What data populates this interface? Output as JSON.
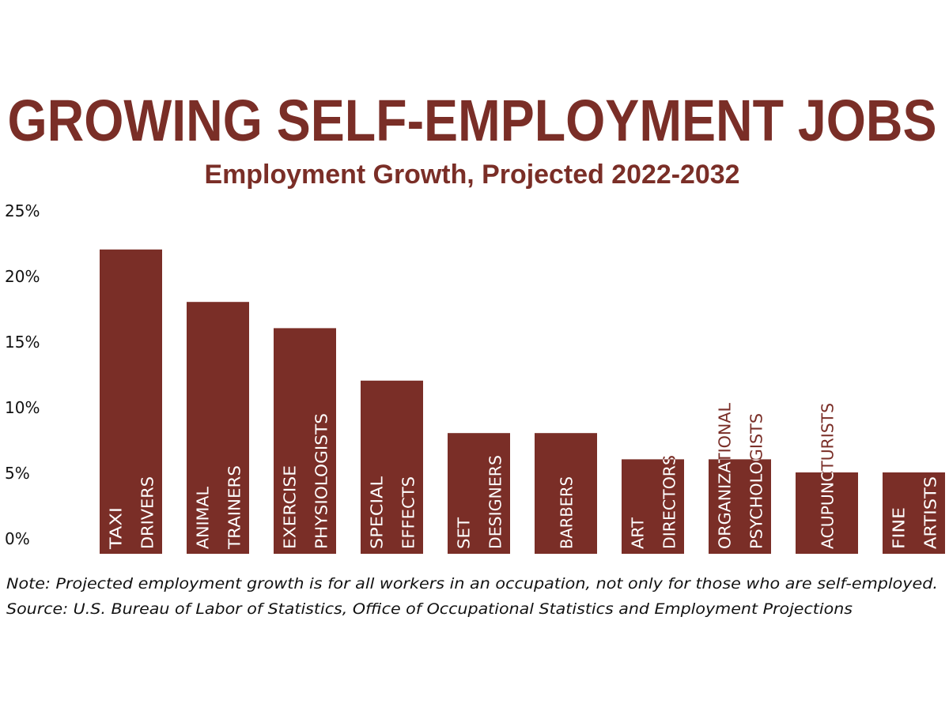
{
  "title": "GROWING SELF-EMPLOYMENT JOBS",
  "subtitle": "Employment Growth, Projected 2022-2032",
  "note": "Note: Projected employment growth is for all workers in an occupation, not only for those who are self-employed.",
  "source": "Source: U.S. Bureau of Labor of Statistics, Office of Occupational Statistics and Employment Projections",
  "colors": {
    "accent": "#7a2e27",
    "label_inside": "#ffffff",
    "background": "#ffffff"
  },
  "chart_data": {
    "type": "bar",
    "title": "GROWING SELF-EMPLOYMENT JOBS",
    "subtitle": "Employment Growth, Projected 2022-2032",
    "xlabel": "",
    "ylabel": "",
    "ylim": [
      0,
      25
    ],
    "yticks": [
      "0%",
      "5%",
      "10%",
      "15%",
      "20%",
      "25%"
    ],
    "grid": false,
    "categories": [
      [
        "TAXI",
        "DRIVERS"
      ],
      [
        "ANIMAL",
        "TRAINERS"
      ],
      [
        "EXERCISE",
        "PHYSIOLOGISTS"
      ],
      [
        "SPECIAL",
        "EFFECTS"
      ],
      [
        "SET",
        "DESIGNERS"
      ],
      [
        "BARBERS"
      ],
      [
        "ART",
        "DIRECTORS"
      ],
      [
        "ORGANIZATIONAL",
        "PSYCHOLOGISTS"
      ],
      [
        "ACUPUNCTURISTS"
      ],
      [
        "FINE",
        "ARTISTS"
      ]
    ],
    "values": [
      22,
      18,
      16,
      12,
      8,
      8,
      6,
      6,
      5,
      5
    ]
  }
}
